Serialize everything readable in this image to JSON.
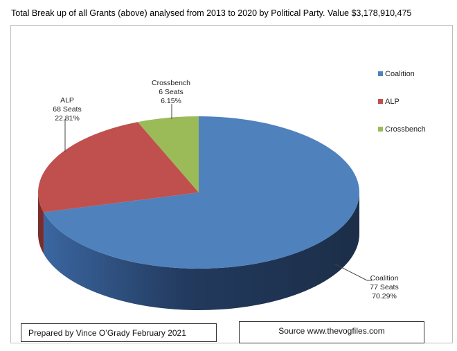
{
  "title": "Total Break up of all Grants (above) analysed from 2013 to 2020 by Political Party. Value $3,178,910,475",
  "chart_data": {
    "type": "pie",
    "style": "3d",
    "legend_position": "right",
    "slices": [
      {
        "name": "Coalition",
        "seats_label": "77 Seats",
        "percent_label": "70.29%",
        "value": 70.29,
        "color": "#4F81BD",
        "side_color": "#1F3350"
      },
      {
        "name": "ALP",
        "seats_label": "68 Seats",
        "percent_label": "22.81%",
        "value": 22.81,
        "color": "#C0504D",
        "side_color": "#7A2E2C"
      },
      {
        "name": "Crossbench",
        "seats_label": "6 Seats",
        "percent_label": "6.15%",
        "value": 6.15,
        "color": "#9BBB59",
        "side_color": "#5E7A30"
      }
    ]
  },
  "footer": {
    "prepared_by": "Prepared by Vince O’Grady February 2021",
    "source": "Source www.thevogfiles.com"
  }
}
